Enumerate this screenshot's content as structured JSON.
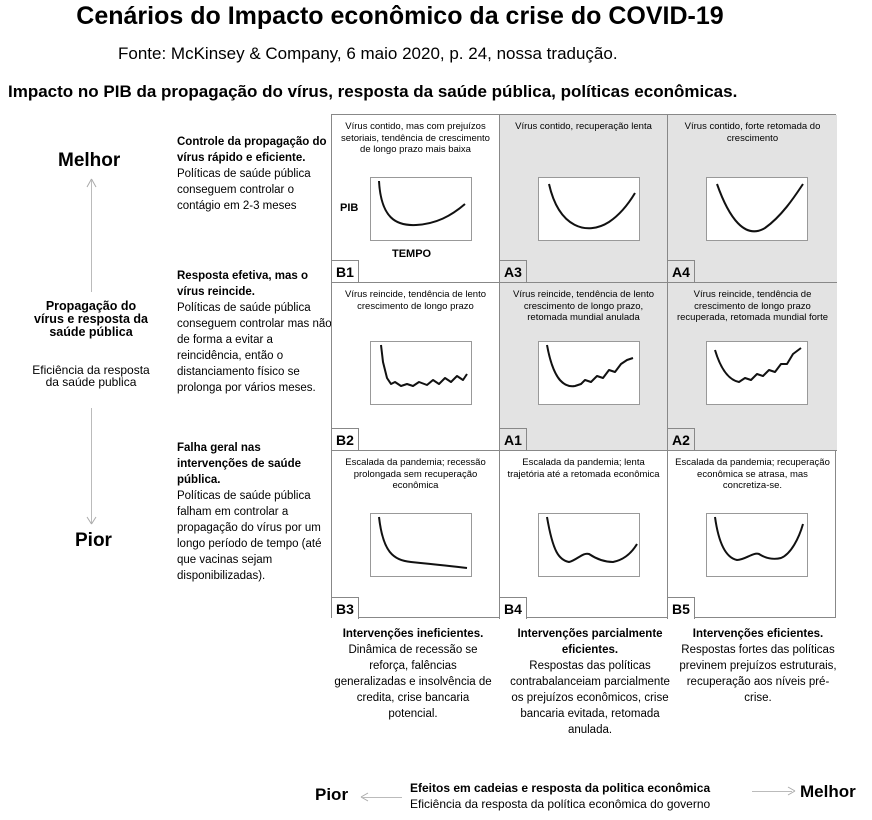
{
  "title": "Cenários do Impacto econômico da crise do COVID-19",
  "source": "Fonte: McKinsey & Company, 6 maio 2020, p. 24, nossa tradução.",
  "subtitle": "Impacto no PIB da propagação do vírus, resposta da saúde pública, políticas econômicas.",
  "vertical_axis": {
    "best": "Melhor",
    "worst": "Pior",
    "label": "Propagação do vírus e resposta da saúde pública",
    "sublabel": "Eficiência da resposta da saúde publica"
  },
  "rows": [
    {
      "heading": "Controle da propagação do vírus rápido e eficiente.",
      "text": "Políticas de saúde pública conseguem controlar o contágio em 2-3 meses"
    },
    {
      "heading": "Resposta efetiva, mas o vírus reincide.",
      "text": "Políticas de saúde pública conseguem controlar mas não de forma a evitar a reincidência, então o distanciamento físico se prolonga por vários meses."
    },
    {
      "heading": "Falha geral nas intervenções de saúde pública.",
      "text": "Políticas de saúde pública falham em controlar a propagação do vírus por um longo período de tempo (até que vacinas sejam disponibilizadas)."
    }
  ],
  "cells": [
    {
      "code": "B1",
      "text": "Vírus contido, mas com prejuízos setoriais, tendência de crescimento de longo prazo mais baixa",
      "shaded": false
    },
    {
      "code": "A3",
      "text": "Vírus contido, recuperação lenta",
      "shaded": true
    },
    {
      "code": "A4",
      "text": "Vírus contido, forte retomada do crescimento",
      "shaded": true
    },
    {
      "code": "B2",
      "text": "Vírus reincide, tendência de lento crescimento de longo prazo",
      "shaded": false
    },
    {
      "code": "A1",
      "text": "Vírus reincide, tendência de lento crescimento de longo prazo, retomada mundial anulada",
      "shaded": true
    },
    {
      "code": "A2",
      "text": "Vírus reincide, tendência de crescimento de longo prazo recuperada, retomada mundial forte",
      "shaded": true
    },
    {
      "code": "B3",
      "text": "Escalada da pandemia; recessão prolongada sem recuperação econômica",
      "shaded": false
    },
    {
      "code": "B4",
      "text": "Escalada da pandemia; lenta trajetória até a retomada econômica",
      "shaded": false
    },
    {
      "code": "B5",
      "text": "Escalada da pandemia; recuperação econômica se atrasa, mas concretiza-se.",
      "shaded": false
    }
  ],
  "chart_axes": {
    "y": "PIB",
    "x": "TEMPO"
  },
  "columns": [
    {
      "heading": "Intervenções ineficientes.",
      "text": "Dinâmica de recessão se reforça, falências generalizadas e insolvência de credita, crise bancaria potencial."
    },
    {
      "heading": "Intervenções parcialmente eficientes.",
      "text": "Respostas das políticas contrabalanceiam parcialmente os prejuízos econômicos, crise bancaria evitada, retomada anulada."
    },
    {
      "heading": "Intervenções eficientes.",
      "text": "Respostas fortes das políticas previnem prejuízos estruturais, recuperação aos níveis pré-crise."
    }
  ],
  "horizontal_axis": {
    "worst": "Pior",
    "best": "Melhor",
    "label": "Efeitos em cadeias e resposta da politica econômica",
    "sublabel": "Eficiência da resposta da política econômica do governo"
  }
}
